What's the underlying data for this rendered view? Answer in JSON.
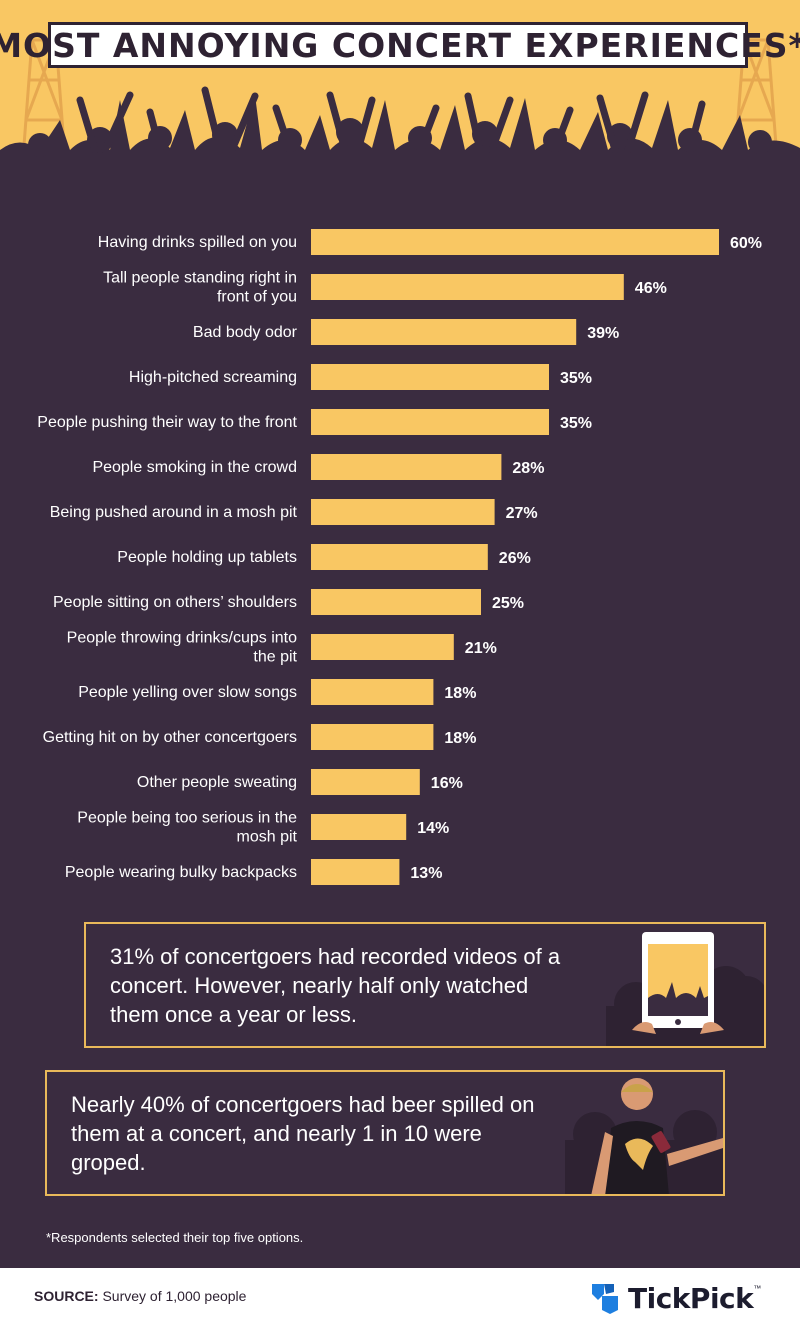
{
  "title": "MOST ANNOYING CONCERT EXPERIENCES*",
  "colors": {
    "background": "#3a2c40",
    "bar": "#f9c763",
    "header": "#f9c763",
    "silhouette": "#3a2c40",
    "logo_blue": "#1e7fe0"
  },
  "chart_data": {
    "type": "bar",
    "orientation": "horizontal",
    "title": "MOST ANNOYING CONCERT EXPERIENCES*",
    "unit": "%",
    "categories": [
      [
        "Having drinks spilled on you"
      ],
      [
        "Tall people standing right in",
        "front of you"
      ],
      [
        "Bad body odor"
      ],
      [
        "High-pitched screaming"
      ],
      [
        "People pushing their way to the front"
      ],
      [
        "People smoking in the crowd"
      ],
      [
        "Being pushed around in a mosh pit"
      ],
      [
        "People holding up tablets"
      ],
      [
        "People sitting on others’ shoulders"
      ],
      [
        "People throwing drinks/cups into",
        "the pit"
      ],
      [
        "People yelling over slow songs"
      ],
      [
        "Getting hit on by other concertgoers"
      ],
      [
        "Other people sweating"
      ],
      [
        "People being too serious in the",
        "mosh pit"
      ],
      [
        "People wearing bulky backpacks"
      ]
    ],
    "values": [
      60,
      46,
      39,
      35,
      35,
      28,
      27,
      26,
      25,
      21,
      18,
      18,
      16,
      14,
      13
    ],
    "value_labels": [
      "60%",
      "46%",
      "39%",
      "35%",
      "35%",
      "28%",
      "27%",
      "26%",
      "25%",
      "21%",
      "18%",
      "18%",
      "16%",
      "14%",
      "13%"
    ],
    "xlim": [
      0,
      60
    ]
  },
  "callouts": [
    {
      "text": "31% of concertgoers had recorded videos of a concert. However, nearly half only watched them once a year or less."
    },
    {
      "text": "Nearly 40% of concertgoers had beer spilled on them at a concert, and nearly 1 in 10 were groped."
    }
  ],
  "footnote": "*Respondents selected their top five options.",
  "footer": {
    "source_label": "SOURCE:",
    "source_text": " Survey of 1,000 people",
    "logo_text": "TickPick",
    "logo_tm": "™"
  }
}
